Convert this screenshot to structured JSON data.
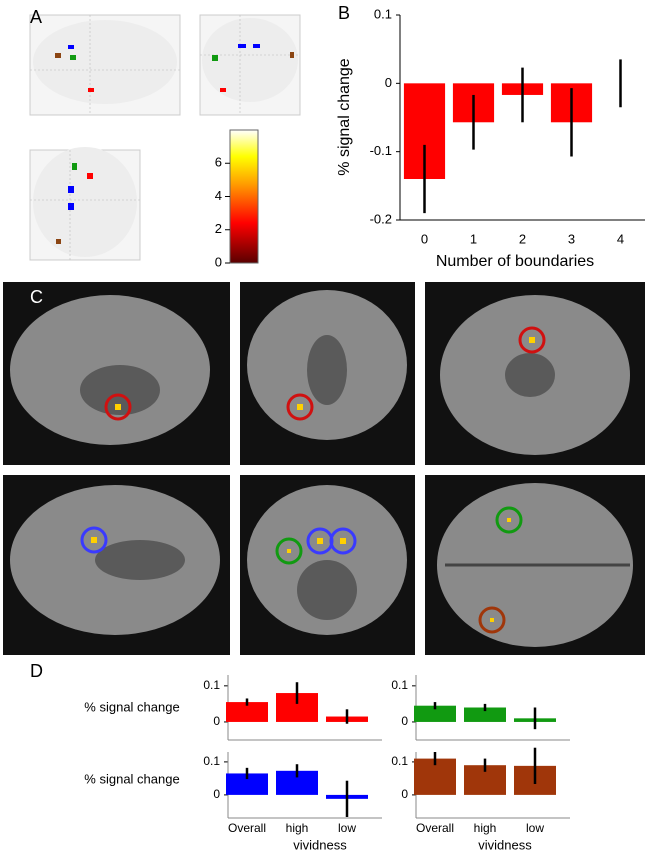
{
  "panel_labels": [
    "A",
    "B",
    "C",
    "D"
  ],
  "colorbar": {
    "lim": [
      0,
      8
    ],
    "ticks": [
      0,
      2,
      4,
      6
    ]
  },
  "chart_data": [
    {
      "type": "bar",
      "ylabel": "% signal change",
      "xlabel": "Number of boundaries",
      "categories": [
        "0",
        "1",
        "2",
        "3",
        "4"
      ],
      "series": [
        {
          "color": "#ff0000",
          "values": [
            -0.14,
            -0.057,
            -0.017,
            -0.057,
            0.0
          ],
          "errors": [
            0.05,
            0.04,
            0.04,
            0.05,
            0.035
          ]
        }
      ],
      "ylim": [
        -0.2,
        0.1
      ],
      "yticks": [
        -0.2,
        -0.1,
        0,
        0.1
      ]
    },
    {
      "type": "bar",
      "ylabel": "% signal change",
      "categories": [
        null,
        null,
        null
      ],
      "series": [
        {
          "color": "#ff0000",
          "values": [
            0.055,
            0.08,
            0.015
          ],
          "errors": [
            0.01,
            0.03,
            0.02
          ]
        }
      ],
      "ylim": [
        -0.05,
        0.13
      ],
      "yticks": [
        0,
        0.1
      ]
    },
    {
      "type": "bar",
      "categories": [
        null,
        null,
        null
      ],
      "series": [
        {
          "color": "#119a11",
          "values": [
            0.045,
            0.04,
            0.01
          ],
          "errors": [
            0.01,
            0.01,
            0.03
          ]
        }
      ],
      "ylim": [
        -0.05,
        0.13
      ],
      "yticks": [
        0,
        0.1
      ]
    },
    {
      "type": "bar",
      "ylabel": "% signal change",
      "xlabel": "vividness",
      "categories": [
        "Overall",
        "high",
        "low"
      ],
      "series": [
        {
          "color": "#0000ff",
          "values": [
            0.065,
            0.073,
            -0.012
          ],
          "errors": [
            0.017,
            0.02,
            0.055
          ]
        }
      ],
      "ylim": [
        -0.07,
        0.13
      ],
      "yticks": [
        0,
        0.1
      ]
    },
    {
      "type": "bar",
      "xlabel": "vividness",
      "categories": [
        "Overall",
        "high",
        "low"
      ],
      "series": [
        {
          "color": "#a0360a",
          "values": [
            0.11,
            0.09,
            0.088
          ],
          "errors": [
            0.02,
            0.02,
            0.055
          ]
        }
      ],
      "ylim": [
        -0.07,
        0.13
      ],
      "yticks": [
        0,
        0.1
      ]
    }
  ]
}
